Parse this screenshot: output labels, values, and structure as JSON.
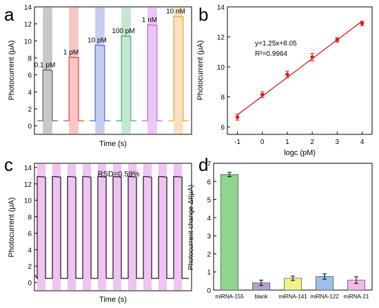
{
  "chart_data": [
    {
      "panel": "a",
      "type": "line",
      "xlabel": "Time (s)",
      "ylabel": "Photocurrent (μA)",
      "ylim": [
        -1,
        14
      ],
      "yticks": [
        "0",
        "2",
        "4",
        "6",
        "8",
        "10",
        "12",
        "14"
      ],
      "grid": false,
      "series": [
        {
          "name": "0.1 pM",
          "values": [
            0.6,
            6.6
          ],
          "color": "#555555",
          "shade": "#c8c8c8"
        },
        {
          "name": "1 pM",
          "values": [
            0.6,
            8.1
          ],
          "color": "#e8322e",
          "shade": "#f7c5c5"
        },
        {
          "name": "10 pM",
          "values": [
            0.6,
            9.5
          ],
          "color": "#3a5fd6",
          "shade": "#c7cdef"
        },
        {
          "name": "100 pM",
          "values": [
            0.6,
            10.6
          ],
          "color": "#24a86b",
          "shade": "#c4e7d2"
        },
        {
          "name": "1 nM",
          "values": [
            0.6,
            11.9
          ],
          "color": "#b85ad8",
          "shade": "#ecc6f4"
        },
        {
          "name": "10 nM",
          "values": [
            0.6,
            12.9
          ],
          "color": "#ee9a28",
          "shade": "#fae1bd"
        }
      ]
    },
    {
      "panel": "b",
      "type": "scatter",
      "xlabel": "logc (pM)",
      "ylabel": "Photocurrent (μA)",
      "xlim": [
        -1.4,
        4.4
      ],
      "ylim": [
        5.5,
        14
      ],
      "xticks": [
        "-1",
        "0",
        "1",
        "2",
        "3",
        "4"
      ],
      "yticks": [
        "6",
        "8",
        "10",
        "12",
        "14"
      ],
      "x": [
        -1,
        0,
        1,
        2,
        3,
        4
      ],
      "y": [
        6.65,
        8.15,
        9.5,
        10.65,
        11.8,
        12.9
      ],
      "err": [
        0.2,
        0.2,
        0.22,
        0.25,
        0.15,
        0.15
      ],
      "fit": {
        "slope": 1.25,
        "intercept": 8.05
      },
      "annotations": [
        "y=1.25x+8.05",
        "R²=0.9964"
      ],
      "color": "#e01b1b",
      "grid": false
    },
    {
      "panel": "c",
      "type": "line",
      "xlabel": "Time (s)",
      "ylabel": "Photocurrent (μA)",
      "ylim": [
        -1,
        14.5
      ],
      "yticks": [
        "0",
        "2",
        "4",
        "6",
        "8",
        "10",
        "12",
        "14"
      ],
      "annotation": "RSD=0.59%",
      "cycles": 10,
      "on_value": 12.9,
      "off_value": 0.5,
      "shade": "#efc3f3",
      "grid": false
    },
    {
      "panel": "d",
      "type": "bar",
      "xlabel": "",
      "ylabel": "Photocurrent change ΔI(μA)",
      "ylim": [
        0,
        7
      ],
      "yticks": [
        "0",
        "1",
        "2",
        "3",
        "4",
        "5",
        "6",
        "7"
      ],
      "categories": [
        "miRNA-155",
        "blank",
        "miRNA-141",
        "miRNA-122",
        "miRNA-21"
      ],
      "values": [
        6.38,
        0.4,
        0.65,
        0.75,
        0.55
      ],
      "err": [
        0.12,
        0.15,
        0.12,
        0.15,
        0.18
      ],
      "colors": [
        "#8fd68f",
        "#b5a2c8",
        "#f2f08c",
        "#9ec0ef",
        "#f4b9ec"
      ],
      "grid": false
    }
  ],
  "labels": [
    "a",
    "b",
    "c",
    "d"
  ]
}
